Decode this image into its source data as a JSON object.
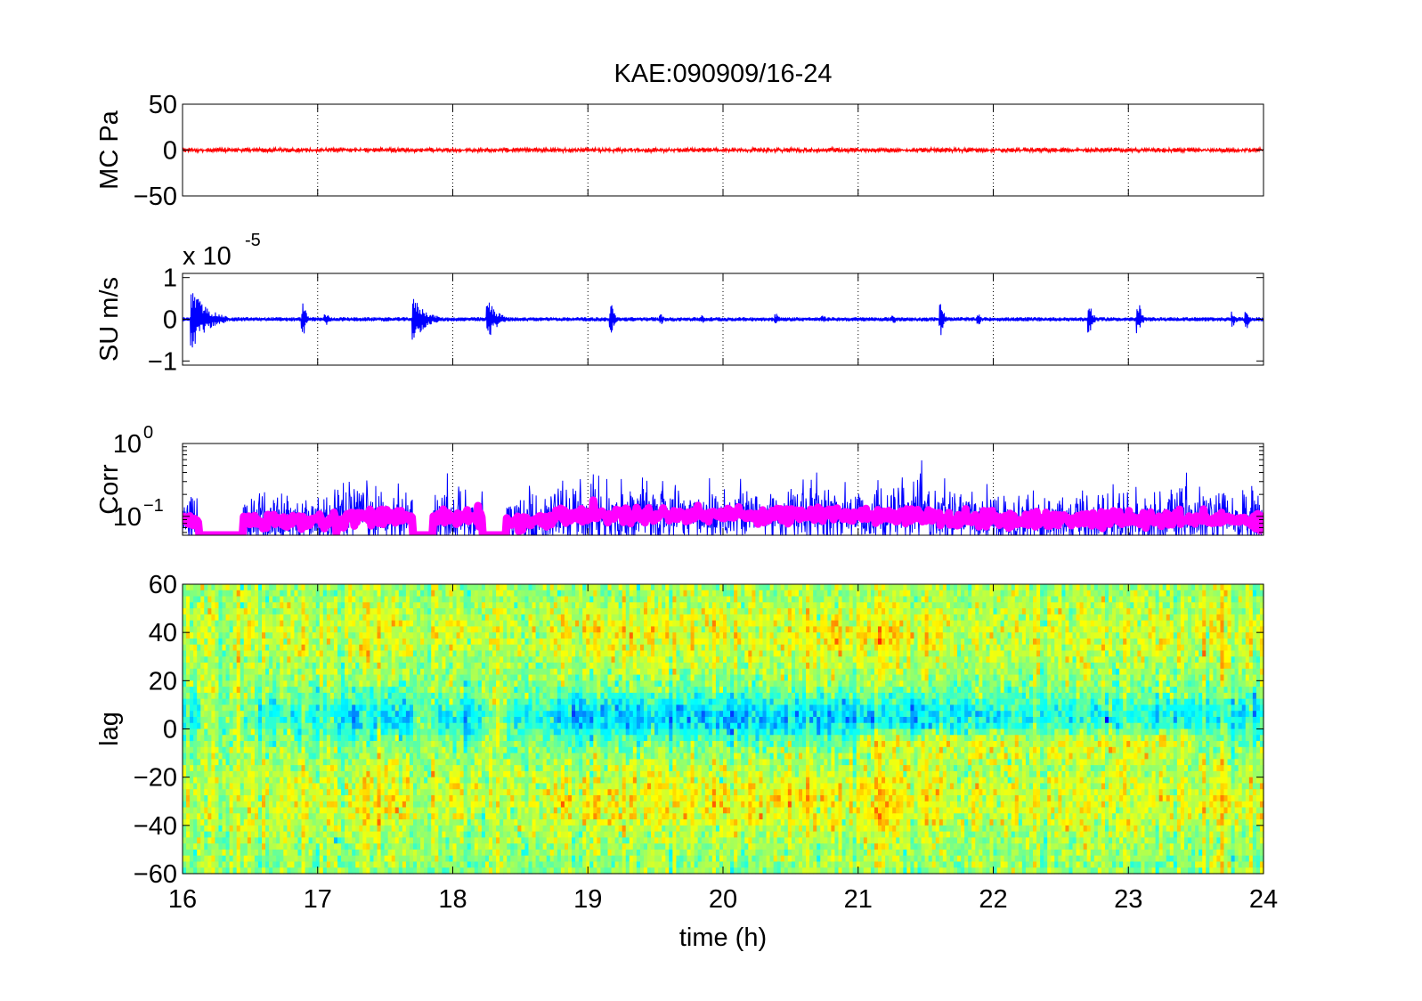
{
  "title": "KAE:090909/16-24",
  "chart_data": [
    {
      "type": "line",
      "panel": "pressure",
      "ylabel": "MC Pa",
      "xlim": [
        16,
        24
      ],
      "ylim": [
        -50,
        50
      ],
      "yticks": [
        50,
        0,
        -50
      ],
      "grid": "vertical dotted",
      "series": [
        {
          "color": "#ff0000",
          "amplitude": 3,
          "baseline": 0
        }
      ]
    },
    {
      "type": "line",
      "panel": "velocity",
      "ylabel": "SU m/s",
      "exponent_label": "x 10",
      "exponent_power": "-5",
      "xlim": [
        16,
        24
      ],
      "ylim": [
        -1.1,
        1.1
      ],
      "yticks": [
        1,
        0,
        -1
      ],
      "grid": "vertical dotted",
      "series": [
        {
          "color": "#0000ff",
          "baseline": 0,
          "background_amplitude": 0.05
        }
      ],
      "bursts": [
        {
          "t": 16.08,
          "amp": 0.7,
          "width": 0.25
        },
        {
          "t": 16.9,
          "amp": 0.4,
          "width": 0.04
        },
        {
          "t": 17.07,
          "amp": 0.15,
          "width": 0.04
        },
        {
          "t": 17.72,
          "amp": 0.5,
          "width": 0.2
        },
        {
          "t": 18.27,
          "amp": 0.45,
          "width": 0.15
        },
        {
          "t": 19.18,
          "amp": 0.35,
          "width": 0.05
        },
        {
          "t": 19.55,
          "amp": 0.12,
          "width": 0.03
        },
        {
          "t": 19.85,
          "amp": 0.12,
          "width": 0.03
        },
        {
          "t": 20.4,
          "amp": 0.15,
          "width": 0.04
        },
        {
          "t": 20.75,
          "amp": 0.1,
          "width": 0.03
        },
        {
          "t": 21.27,
          "amp": 0.12,
          "width": 0.03
        },
        {
          "t": 21.62,
          "amp": 0.4,
          "width": 0.04
        },
        {
          "t": 21.9,
          "amp": 0.12,
          "width": 0.03
        },
        {
          "t": 22.72,
          "amp": 0.35,
          "width": 0.05
        },
        {
          "t": 23.08,
          "amp": 0.4,
          "width": 0.05
        },
        {
          "t": 23.78,
          "amp": 0.2,
          "width": 0.05
        },
        {
          "t": 23.88,
          "amp": 0.22,
          "width": 0.04
        }
      ]
    },
    {
      "type": "line",
      "panel": "correlation",
      "ylabel": "Corr",
      "yscale": "log",
      "xlim": [
        16,
        24
      ],
      "ylim": [
        0.055,
        1
      ],
      "yticks": [
        {
          "base": "10",
          "power": "0",
          "value": 1
        },
        {
          "base": "10",
          "power": "−1",
          "value": 0.1
        }
      ],
      "grid": "vertical dotted",
      "series": [
        {
          "color": "#0000ff",
          "style": "noisy"
        },
        {
          "color": "#ff00ff",
          "style": "smoothed band"
        }
      ],
      "segments": [
        {
          "t0": 16.0,
          "t1": 16.12,
          "level": 0.085
        },
        {
          "t0": 16.45,
          "t1": 17.2,
          "level": 0.085
        },
        {
          "t0": 17.2,
          "t1": 17.7,
          "level": 0.1
        },
        {
          "t0": 17.85,
          "t1": 18.22,
          "level": 0.095
        },
        {
          "t0": 18.4,
          "t1": 18.75,
          "level": 0.085
        },
        {
          "t0": 18.75,
          "t1": 21.6,
          "level": 0.105
        },
        {
          "t0": 21.6,
          "t1": 24.0,
          "level": 0.09
        }
      ]
    },
    {
      "type": "heatmap",
      "panel": "lag",
      "ylabel": "lag",
      "xlabel": "time (h)",
      "xlim": [
        16,
        24
      ],
      "ylim": [
        -60,
        60
      ],
      "xticks": [
        16,
        17,
        18,
        19,
        20,
        21,
        22,
        23,
        24
      ],
      "yticks": [
        60,
        40,
        20,
        0,
        -20,
        -40,
        -60
      ],
      "colormap": "jet",
      "features": {
        "negative_band_lag": 5,
        "positive_band_lag_high": 40,
        "positive_band_lag_low": -30
      }
    }
  ]
}
